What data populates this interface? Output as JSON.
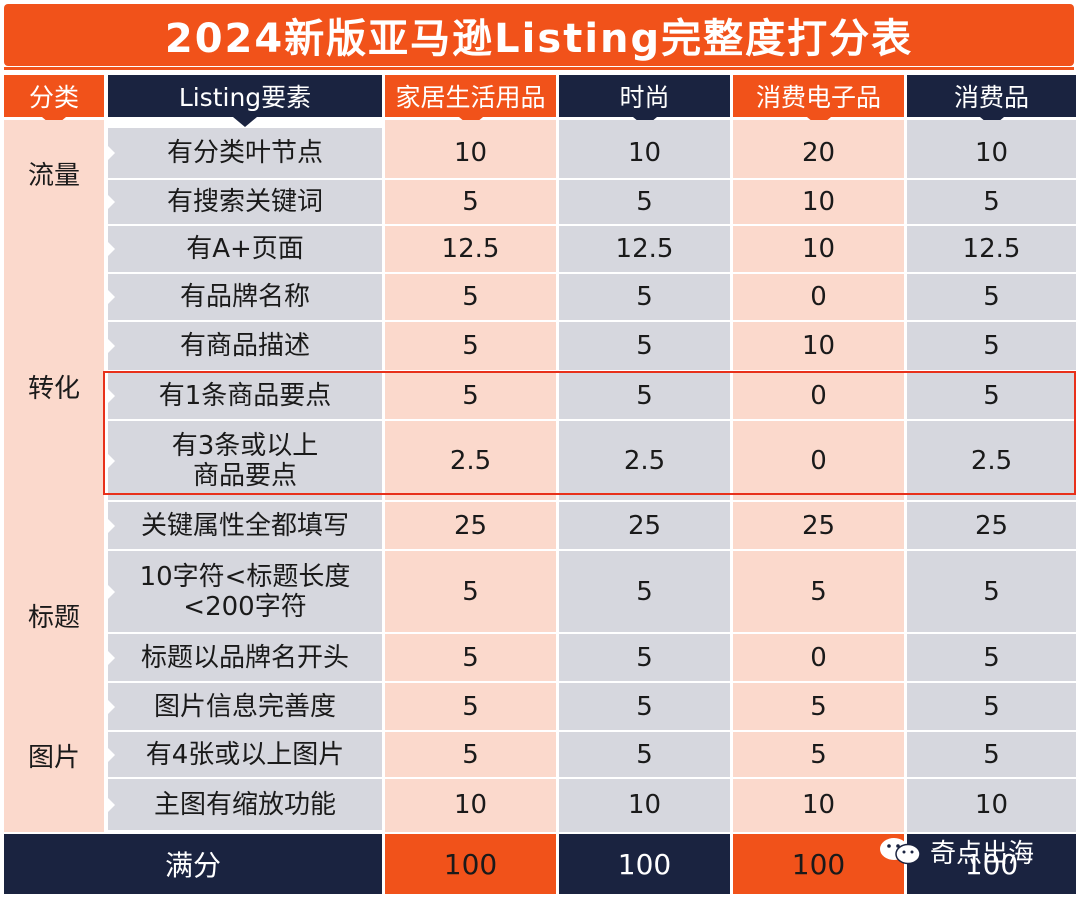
{
  "title": "2024新版亚马逊Listing完整度打分表",
  "header": {
    "category": "分类",
    "element": "Listing要素",
    "columns": [
      "家居生活用品",
      "时尚",
      "消费电子品",
      "消费品"
    ]
  },
  "categories": [
    "流量",
    "转化",
    "标题",
    "图片"
  ],
  "rows": [
    {
      "item": "有分类叶节点",
      "values": [
        "10",
        "10",
        "20",
        "10"
      ]
    },
    {
      "item": "有搜索关键词",
      "values": [
        "5",
        "5",
        "10",
        "5"
      ]
    },
    {
      "item": "有A+页面",
      "values": [
        "12.5",
        "12.5",
        "10",
        "12.5"
      ]
    },
    {
      "item": "有品牌名称",
      "values": [
        "5",
        "5",
        "0",
        "5"
      ]
    },
    {
      "item": "有商品描述",
      "values": [
        "5",
        "5",
        "10",
        "5"
      ]
    },
    {
      "item": "有1条商品要点",
      "values": [
        "5",
        "5",
        "0",
        "5"
      ]
    },
    {
      "item": "有3条或以上\n商品要点",
      "values": [
        "2.5",
        "2.5",
        "0",
        "2.5"
      ]
    },
    {
      "item": "关键属性全都填写",
      "values": [
        "25",
        "25",
        "25",
        "25"
      ]
    },
    {
      "item": "10字符<标题长度\n<200字符",
      "values": [
        "5",
        "5",
        "5",
        "5"
      ]
    },
    {
      "item": "标题以品牌名开头",
      "values": [
        "5",
        "5",
        "0",
        "5"
      ]
    },
    {
      "item": "图片信息完善度",
      "values": [
        "5",
        "5",
        "5",
        "5"
      ]
    },
    {
      "item": "有4张或以上图片",
      "values": [
        "5",
        "5",
        "5",
        "5"
      ]
    },
    {
      "item": "主图有缩放功能",
      "values": [
        "10",
        "10",
        "10",
        "10"
      ]
    }
  ],
  "footer": {
    "label": "满分",
    "values": [
      "100",
      "100",
      "100",
      "100"
    ]
  },
  "watermark": {
    "icon": "wechat-icon",
    "text": "奇点出海"
  },
  "colors": {
    "orange": "#f1521a",
    "navy": "#1a2340",
    "pink": "#fbd9cc",
    "grey": "#d6d7de",
    "highlight": "#e8301a"
  }
}
